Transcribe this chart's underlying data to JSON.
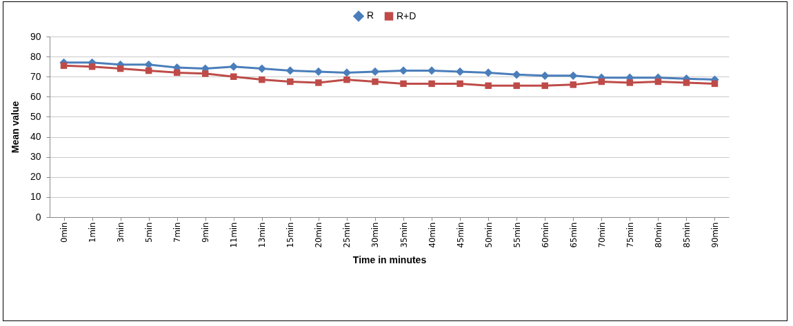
{
  "chart_data": {
    "type": "line",
    "xlabel": "Time in minutes",
    "ylabel": "Mean value",
    "categories": [
      "0min",
      "1min",
      "3min",
      "5min",
      "7min",
      "9min",
      "11min",
      "13min",
      "15min",
      "20min",
      "25min",
      "30min",
      "35min",
      "40min",
      "45min",
      "50min",
      "55min",
      "60min",
      "65min",
      "70min",
      "75min",
      "80min",
      "85min",
      "90min"
    ],
    "series": [
      {
        "name": "R",
        "color": "#4a7ebb",
        "marker": "diamond",
        "values": [
          77,
          77,
          76,
          76,
          74.5,
          74,
          75,
          74,
          73,
          72.5,
          72,
          72.5,
          73,
          73,
          72.5,
          72,
          71,
          70.5,
          70.5,
          69.5,
          69.5,
          69.5,
          69,
          68.5
        ]
      },
      {
        "name": "R+D",
        "color": "#be4b48",
        "marker": "square",
        "values": [
          75.5,
          75,
          74,
          73,
          72,
          71.5,
          70,
          68.5,
          67.5,
          67,
          68.5,
          67.5,
          66.5,
          66.5,
          66.5,
          65.5,
          65.5,
          65.5,
          66,
          67.5,
          67,
          67.5,
          67,
          66.5
        ]
      }
    ],
    "ylim": [
      0,
      90
    ],
    "yticks": [
      0,
      10,
      20,
      30,
      40,
      50,
      60,
      70,
      80,
      90
    ],
    "grid": "y",
    "legend": "top"
  }
}
